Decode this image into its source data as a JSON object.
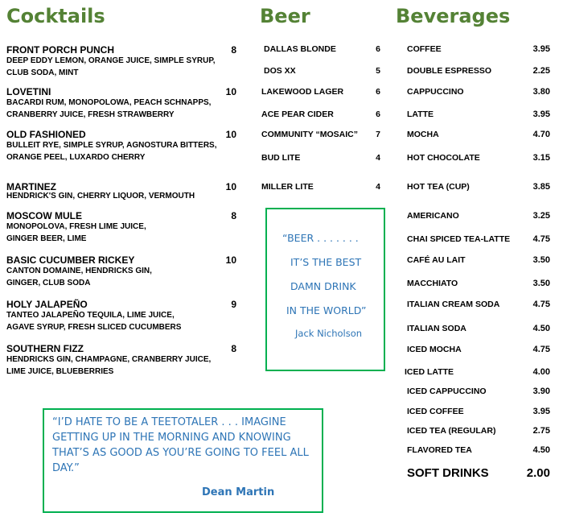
{
  "headings": {
    "cocktails": "Cocktails",
    "beer": "Beer",
    "beverages": "Beverages"
  },
  "colors": {
    "heading": "#548235",
    "box_border": "#00b050",
    "quote": "#2e75b6"
  },
  "cocktails": [
    {
      "name": "FRONT PORCH PUNCH",
      "price": "8",
      "desc": [
        "DEEP EDDY LEMON, ORANGE JUICE, SIMPLE SYRUP,",
        "CLUB SODA, MINT"
      ]
    },
    {
      "name": "LOVETINI",
      "price": "10",
      "desc": [
        "BACARDI RUM, MONOPOLOWA, PEACH SCHNAPPS,",
        "CRANBERRY JUICE, FRESH STRAWBERRY"
      ]
    },
    {
      "name": "OLD FASHIONED",
      "price": "10",
      "desc": [
        "BULLEIT RYE, SIMPLE SYRUP, AGNOSTURA BITTERS,",
        "ORANGE PEEL,  LUXARDO CHERRY"
      ]
    },
    {
      "name": "MARTINEZ",
      "price": "10",
      "desc": [
        "HENDRICK'S GIN, CHERRY LIQUOR, VERMOUTH"
      ]
    },
    {
      "name": "MOSCOW MULE",
      "price": "8",
      "desc": [
        "MONOPOLOVA, FRESH LIME JUICE,",
        "GINGER BEER, LIME"
      ]
    },
    {
      "name": "BASIC CUCUMBER RICKEY",
      "price": "10",
      "desc": [
        "CANTON DOMAINE, HENDRICKS GIN,",
        "GINGER, CLUB SODA"
      ]
    },
    {
      "name": "HOLY JALAPEÑO",
      "price": "9",
      "desc": [
        "TANTEO JALAPEÑO TEQUILA, LIME JUICE,",
        "AGAVE SYRUP, FRESH SLICED CUCUMBERS"
      ]
    },
    {
      "name": "SOUTHERN FIZZ",
      "price": "8",
      "desc": [
        "HENDRICKS GIN, CHAMPAGNE, CRANBERRY JUICE,",
        "LIME JUICE, BLUEBERRIES"
      ]
    }
  ],
  "beer": [
    {
      "name": "DALLAS BLONDE",
      "price": "6"
    },
    {
      "name": "DOS XX",
      "price": "5"
    },
    {
      "name": "LAKEWOOD LAGER",
      "price": "6"
    },
    {
      "name": "ACE PEAR CIDER",
      "price": "6"
    },
    {
      "name": "COMMUNITY “MOSAIC”",
      "price": "7"
    },
    {
      "name": "BUD LITE",
      "price": "4"
    },
    {
      "name": "MILLER LITE",
      "price": "4"
    }
  ],
  "beverages": [
    {
      "name": "COFFEE",
      "price": "3.95"
    },
    {
      "name": "DOUBLE ESPRESSO",
      "price": "2.25"
    },
    {
      "name": "CAPPUCCINO",
      "price": "3.80"
    },
    {
      "name": "LATTE",
      "price": "3.95"
    },
    {
      "name": "MOCHA",
      "price": "4.70"
    },
    {
      "name": "HOT CHOCOLATE",
      "price": "3.15"
    },
    {
      "name": "HOT TEA (CUP)",
      "price": "3.85"
    },
    {
      "name": "AMERICANO",
      "price": "3.25"
    },
    {
      "name": "CHAI SPICED TEA-LATTE",
      "price": "4.75"
    },
    {
      "name": "CAFÉ AU LAIT",
      "price": "3.50"
    },
    {
      "name": "MACCHIATO",
      "price": "3.50"
    },
    {
      "name": "ITALIAN CREAM SODA",
      "price": "4.75"
    },
    {
      "name": "ITALIAN SODA",
      "price": "4.50"
    },
    {
      "name": "ICED MOCHA",
      "price": "4.75"
    },
    {
      "name": "ICED LATTE",
      "price": "4.00"
    },
    {
      "name": "ICED CAPPUCCINO",
      "price": "3.90"
    },
    {
      "name": "ICED COFFEE",
      "price": "3.95"
    },
    {
      "name": "ICED TEA (REGULAR)",
      "price": "2.75"
    },
    {
      "name": "FLAVORED TEA",
      "price": "4.50"
    },
    {
      "name": "SOFT DRINKS",
      "price": "2.00"
    }
  ],
  "beer_quote": {
    "lines": [
      "“BEER . . . . . . .",
      "IT’S THE BEST",
      "DAMN DRINK",
      "IN THE WORLD”"
    ],
    "author": "Jack  Nicholson"
  },
  "martin_quote": {
    "lines": [
      "“I’D HATE TO BE A TEETOTALER . . . IMAGINE",
      "GETTING UP IN THE MORNING AND KNOWING",
      "THAT’S AS GOOD AS YOU’RE GOING TO FEEL ALL",
      "DAY.”"
    ],
    "author": "Dean Martin"
  }
}
